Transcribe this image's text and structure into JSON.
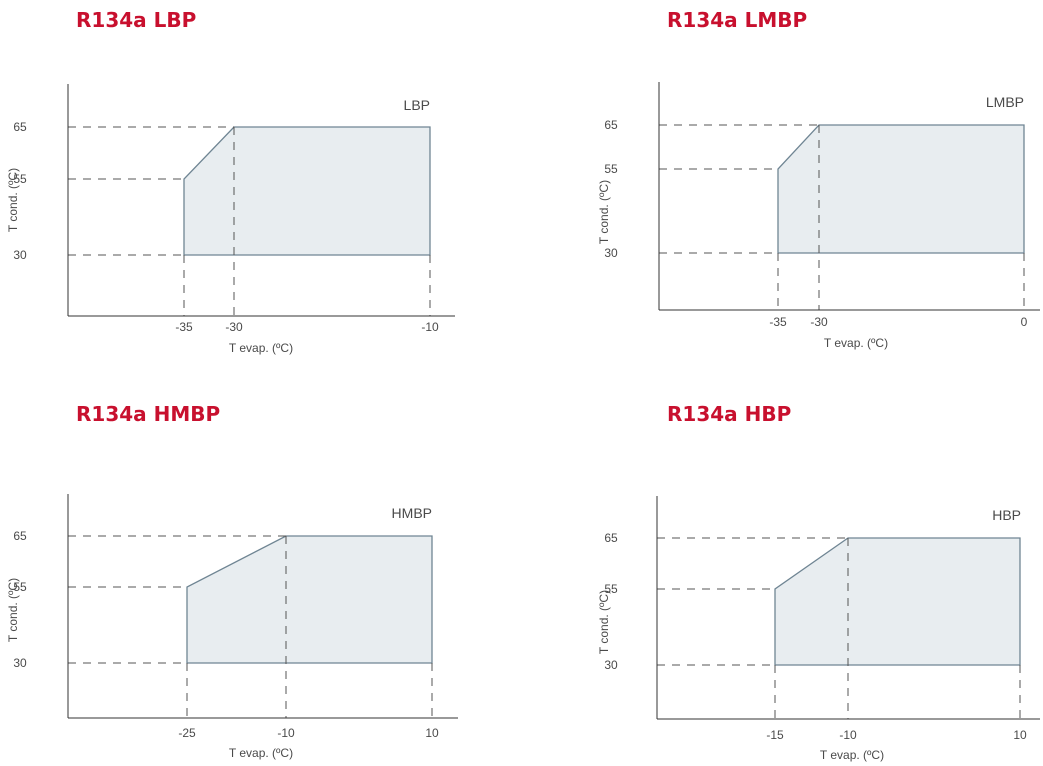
{
  "chart_data": [
    {
      "type": "area",
      "title": "R134a LBP",
      "region_label": "LBP",
      "xlabel": "T evap. (ºC)",
      "ylabel": "T cond. (ºC)",
      "x_ticks": [
        -35,
        -30,
        -10
      ],
      "y_ticks": [
        30,
        55,
        65
      ],
      "polygon": [
        [
          -35,
          30
        ],
        [
          -35,
          55
        ],
        [
          -30,
          65
        ],
        [
          -10,
          65
        ],
        [
          -10,
          30
        ]
      ],
      "grid": false,
      "colors": {
        "fill": "#e8edf0",
        "line": "#6f8593",
        "title": "#c8102e"
      }
    },
    {
      "type": "area",
      "title": "R134a LMBP",
      "region_label": "LMBP",
      "xlabel": "T evap. (ºC)",
      "ylabel": "T cond. (ºC)",
      "x_ticks": [
        -35,
        -30,
        0
      ],
      "y_ticks": [
        30,
        55,
        65
      ],
      "polygon": [
        [
          -35,
          30
        ],
        [
          -35,
          55
        ],
        [
          -30,
          65
        ],
        [
          0,
          65
        ],
        [
          0,
          30
        ]
      ],
      "grid": false,
      "colors": {
        "fill": "#e8edf0",
        "line": "#6f8593",
        "title": "#c8102e"
      }
    },
    {
      "type": "area",
      "title": "R134a HMBP",
      "region_label": "HMBP",
      "xlabel": "T evap. (ºC)",
      "ylabel": "T cond. (ºC)",
      "x_ticks": [
        -25,
        -10,
        10
      ],
      "y_ticks": [
        30,
        55,
        65
      ],
      "polygon": [
        [
          -25,
          30
        ],
        [
          -25,
          55
        ],
        [
          -10,
          65
        ],
        [
          10,
          65
        ],
        [
          10,
          30
        ]
      ],
      "grid": false,
      "colors": {
        "fill": "#e8edf0",
        "line": "#6f8593",
        "title": "#c8102e"
      }
    },
    {
      "type": "area",
      "title": "R134a HBP",
      "region_label": "HBP",
      "xlabel": "T evap. (ºC)",
      "ylabel": "T cond. (ºC)",
      "x_ticks": [
        -15,
        -10,
        10
      ],
      "y_ticks": [
        30,
        55,
        65
      ],
      "polygon": [
        [
          -15,
          30
        ],
        [
          -15,
          55
        ],
        [
          -10,
          65
        ],
        [
          10,
          65
        ],
        [
          10,
          30
        ]
      ],
      "grid": false,
      "colors": {
        "fill": "#e8edf0",
        "line": "#6f8593",
        "title": "#c8102e"
      }
    }
  ]
}
